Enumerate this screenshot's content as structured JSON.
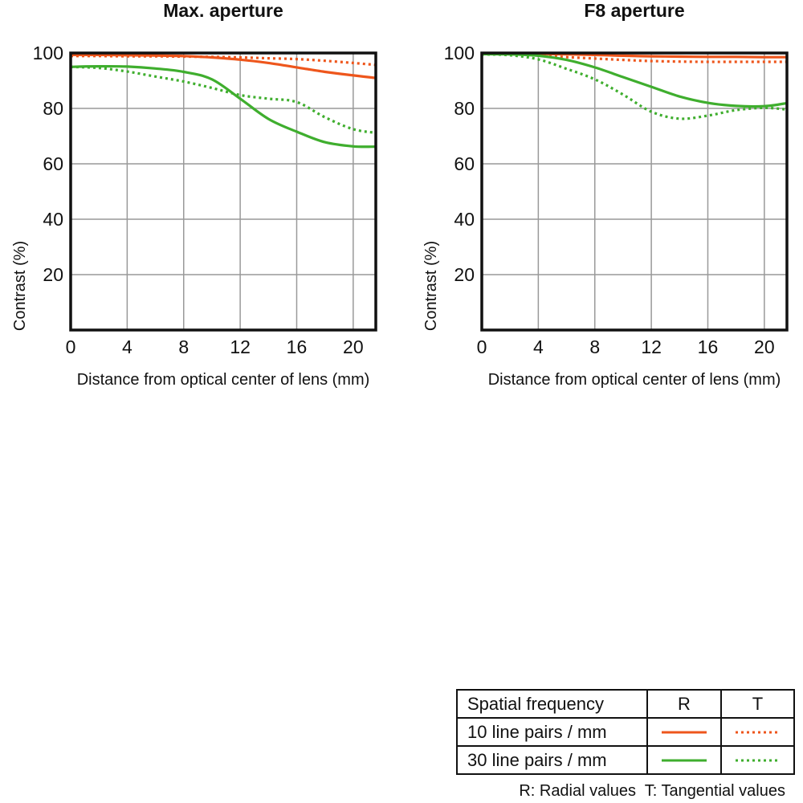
{
  "colors": {
    "orange": "#ee561c",
    "green": "#3fae2e",
    "grid": "#999999",
    "frame": "#111111",
    "text": "#111111"
  },
  "legend": {
    "header": [
      "Spatial frequency",
      "R",
      "T"
    ],
    "rows": [
      {
        "label": "10 line pairs / mm",
        "color_key": "orange"
      },
      {
        "label": "30 line pairs / mm",
        "color_key": "green"
      }
    ],
    "caption": "R: Radial values  T: Tangential values"
  },
  "chart_data": [
    {
      "type": "line",
      "title": "Max. aperture",
      "xlabel": "Distance from optical center of lens (mm)",
      "ylabel": "Contrast (%)",
      "xlim": [
        0,
        21.6
      ],
      "ylim": [
        0,
        100
      ],
      "xticks": [
        0,
        4,
        8,
        12,
        16,
        20
      ],
      "yticks": [
        20,
        40,
        60,
        80,
        100
      ],
      "grid": true,
      "legend_position": "shared-bottom-right-table",
      "x": [
        0,
        2,
        4,
        6,
        8,
        10,
        12,
        14,
        16,
        18,
        20,
        21.6
      ],
      "series": [
        {
          "name": "10 line pairs / mm R (radial)",
          "legend_row": "10 line pairs / mm",
          "orientation": "R",
          "style": "solid",
          "color_key": "orange",
          "values": [
            99.3,
            99.3,
            99.2,
            99.1,
            98.9,
            98.4,
            97.6,
            96.4,
            94.8,
            93.2,
            91.9,
            91.0
          ]
        },
        {
          "name": "10 line pairs / mm T (tangential)",
          "legend_row": "10 line pairs / mm",
          "orientation": "T",
          "style": "dotted",
          "color_key": "orange",
          "values": [
            98.9,
            98.9,
            98.8,
            98.8,
            98.7,
            98.6,
            98.4,
            98.1,
            97.8,
            97.2,
            96.4,
            95.7
          ]
        },
        {
          "name": "30 line pairs / mm R (radial)",
          "legend_row": "30 line pairs / mm",
          "orientation": "R",
          "style": "solid",
          "color_key": "green",
          "values": [
            95.0,
            95.2,
            95.1,
            94.4,
            93.2,
            90.5,
            83.5,
            76.2,
            71.6,
            67.8,
            66.3,
            66.2
          ]
        },
        {
          "name": "30 line pairs / mm T (tangential)",
          "legend_row": "30 line pairs / mm",
          "orientation": "T",
          "style": "dotted",
          "color_key": "green",
          "values": [
            95.0,
            94.6,
            93.3,
            91.5,
            89.7,
            87.4,
            84.8,
            83.5,
            82.3,
            76.8,
            72.5,
            71.2
          ]
        }
      ]
    },
    {
      "type": "line",
      "title": "F8 aperture",
      "xlabel": "Distance from optical center of lens (mm)",
      "ylabel": "Contrast (%)",
      "xlim": [
        0,
        21.6
      ],
      "ylim": [
        0,
        100
      ],
      "xticks": [
        0,
        4,
        8,
        12,
        16,
        20
      ],
      "yticks": [
        20,
        40,
        60,
        80,
        100
      ],
      "grid": true,
      "legend_position": "shared-bottom-right-table",
      "x": [
        0,
        2,
        4,
        6,
        8,
        10,
        12,
        14,
        16,
        18,
        20,
        21.6
      ],
      "series": [
        {
          "name": "10 line pairs / mm R (radial)",
          "legend_row": "10 line pairs / mm",
          "orientation": "R",
          "style": "solid",
          "color_key": "orange",
          "values": [
            99.8,
            99.8,
            99.7,
            99.5,
            99.3,
            99.0,
            98.8,
            98.7,
            98.6,
            98.6,
            98.5,
            98.5
          ]
        },
        {
          "name": "10 line pairs / mm T (tangential)",
          "legend_row": "10 line pairs / mm",
          "orientation": "T",
          "style": "dotted",
          "color_key": "orange",
          "values": [
            99.8,
            99.6,
            99.1,
            98.5,
            98.0,
            97.5,
            97.1,
            96.9,
            96.8,
            96.8,
            96.8,
            96.8
          ]
        },
        {
          "name": "30 line pairs / mm R (radial)",
          "legend_row": "30 line pairs / mm",
          "orientation": "R",
          "style": "solid",
          "color_key": "green",
          "values": [
            99.6,
            99.5,
            99.0,
            97.5,
            94.8,
            91.3,
            87.8,
            84.3,
            82.0,
            80.9,
            80.8,
            81.9
          ]
        },
        {
          "name": "30 line pairs / mm T (tangential)",
          "legend_row": "30 line pairs / mm",
          "orientation": "T",
          "style": "dotted",
          "color_key": "green",
          "values": [
            99.5,
            99.2,
            97.7,
            94.3,
            90.5,
            85.0,
            78.8,
            76.3,
            77.4,
            79.4,
            80.2,
            79.6
          ]
        }
      ]
    }
  ]
}
